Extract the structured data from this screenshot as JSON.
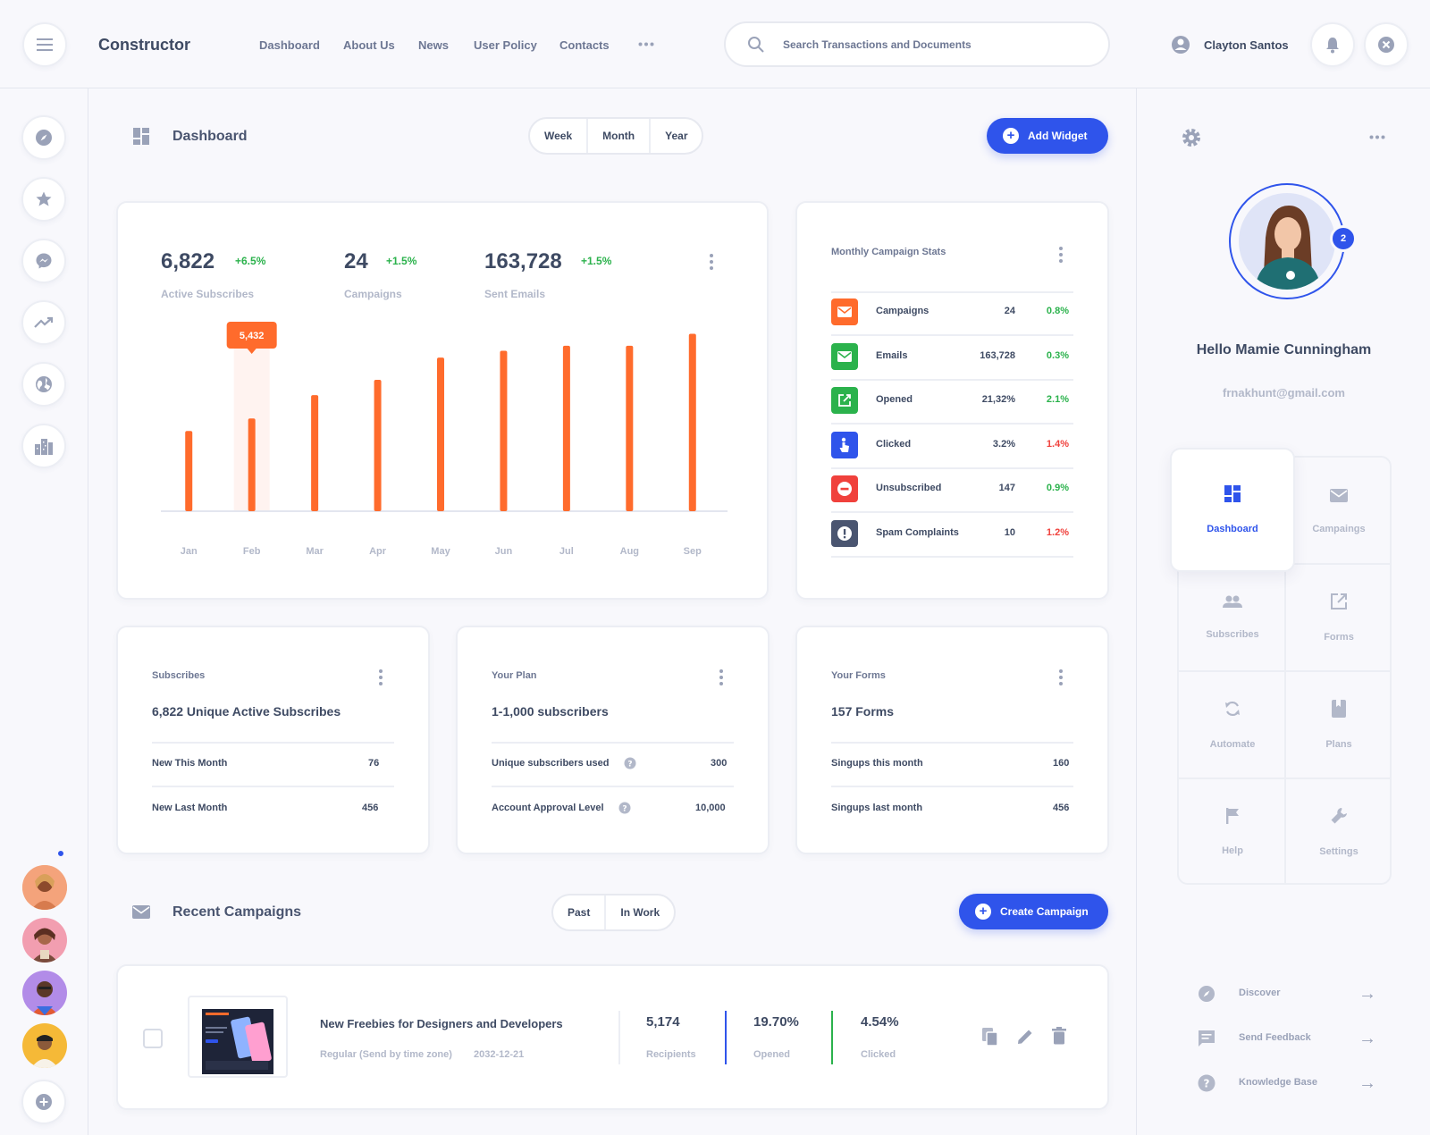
{
  "header": {
    "brand": "Constructor",
    "nav": [
      "Dashboard",
      "About Us",
      "News",
      "User Policy",
      "Contacts"
    ],
    "search_placeholder": "Search Transactions and Documents",
    "user_name": "Clayton Santos"
  },
  "dashboard": {
    "title": "Dashboard",
    "range_tabs": [
      "Week",
      "Month",
      "Year"
    ],
    "add_widget": "Add Widget"
  },
  "kpis": [
    {
      "value": "6,822",
      "change": "+6.5%",
      "label": "Active Subscribes"
    },
    {
      "value": "24",
      "change": "+1.5%",
      "label": "Campaigns"
    },
    {
      "value": "163,728",
      "change": "+1.5%",
      "label": "Sent Emails"
    }
  ],
  "chart_data": {
    "type": "bar",
    "categories": [
      "Jan",
      "Feb",
      "Mar",
      "Apr",
      "May",
      "Jun",
      "Jul",
      "Aug",
      "Sep"
    ],
    "values": [
      4700,
      5432,
      6800,
      7700,
      9000,
      9400,
      9700,
      9700,
      10400
    ],
    "highlight": {
      "category": "Feb",
      "label": "5,432"
    },
    "ylim": [
      0,
      11000
    ],
    "grid": false,
    "color": "#ff6b2c"
  },
  "campaign_stats": {
    "title": "Monthly Campaign Stats",
    "rows": [
      {
        "name": "Campaigns",
        "value": "24",
        "pct": "0.8%",
        "trend": "up",
        "icon": "mail-icon",
        "color": "#ff6b2c"
      },
      {
        "name": "Emails",
        "value": "163,728",
        "pct": "0.3%",
        "trend": "up",
        "icon": "mail-icon",
        "color": "#2bb24c"
      },
      {
        "name": "Opened",
        "value": "21,32%",
        "pct": "2.1%",
        "trend": "up",
        "icon": "open-external-icon",
        "color": "#2bb24c"
      },
      {
        "name": "Clicked",
        "value": "3.2%",
        "pct": "1.4%",
        "trend": "down",
        "icon": "pointer-icon",
        "color": "#2f54eb"
      },
      {
        "name": "Unsubscribed",
        "value": "147",
        "pct": "0.9%",
        "trend": "up",
        "icon": "minus-circle-icon",
        "color": "#f0413c"
      },
      {
        "name": "Spam Complaints",
        "value": "10",
        "pct": "1.2%",
        "trend": "down",
        "icon": "alert-icon",
        "color": "#4a5570"
      }
    ]
  },
  "subscribes_card": {
    "title": "Subscribes",
    "headline": "6,822 Unique  Active Subscribes",
    "rows": [
      {
        "label": "New This Month",
        "value": "76"
      },
      {
        "label": "New Last Month",
        "value": "456"
      }
    ]
  },
  "plan_card": {
    "title": "Your Plan",
    "headline": "1-1,000 subscribers",
    "rows": [
      {
        "label": "Unique subscribers used",
        "value": "300"
      },
      {
        "label": "Account Approval Level",
        "value": "10,000"
      }
    ]
  },
  "forms_card": {
    "title": "Your Forms",
    "headline": "157 Forms",
    "rows": [
      {
        "label": "Singups this month",
        "value": "160"
      },
      {
        "label": "Singups last month",
        "value": "456"
      }
    ]
  },
  "recent": {
    "title": "Recent Campaigns",
    "tabs": [
      "Past",
      "In Work"
    ],
    "create": "Create Campaign",
    "item": {
      "name": "New Freebies for Designers and Developers",
      "type": "Regular (Send by time zone)",
      "date": "2032-12-21",
      "stats": [
        {
          "value": "5,174",
          "label": "Recipients"
        },
        {
          "value": "19.70%",
          "label": "Opened"
        },
        {
          "value": "4.54%",
          "label": "Clicked"
        }
      ]
    }
  },
  "profile": {
    "greeting": "Hello Mamie Cunningham",
    "email": "frnakhunt@gmail.com",
    "badge": "2"
  },
  "quick_grid": [
    "Dashboard",
    "Campaings",
    "Subscribes",
    "Forms",
    "Automate",
    "Plans",
    "Help",
    "Settings"
  ],
  "bottom_links": [
    "Discover",
    "Send Feedback",
    "Knowledge  Base"
  ],
  "colors": {
    "accent": "#2f54eb",
    "bar": "#ff6b2c",
    "positive": "#2bb24c",
    "negative": "#f0413c"
  }
}
